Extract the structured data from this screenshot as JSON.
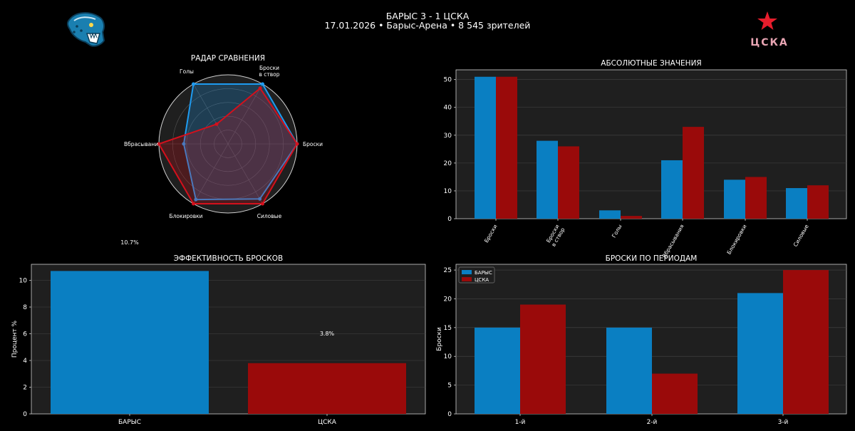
{
  "header": {
    "title": "БАРЫС 3 - 1 ЦСКА",
    "subtitle": "17.01.2026 • Барыс-Арена • 8 545 зрителей",
    "home_logo": "barys-jaguar-logo",
    "away_logo_text": "ЦСКА"
  },
  "colors": {
    "home": "#0a7fc2",
    "away": "#9a0a0a",
    "home_line": "#1e9bf0",
    "away_line": "#d4101c",
    "panel": "#1f1f1f"
  },
  "chart_data": [
    {
      "id": "radar",
      "type": "radar",
      "title": "РАДАР СРАВНЕНИЯ",
      "axes": [
        "Броски",
        "Броски\nв створ",
        "Голы",
        "Вбрасывания",
        "Блокировки",
        "Силовые"
      ],
      "axis_labels": [
        "Броски",
        "Броски",
        "в створ",
        "Голы",
        "Вбрасывани",
        "Блокировки",
        "Силовые"
      ],
      "series": [
        {
          "name": "БАРЫС",
          "values": [
            1.0,
            1.0,
            1.0,
            0.64,
            0.93,
            0.92
          ]
        },
        {
          "name": "ЦСКА",
          "values": [
            1.0,
            0.93,
            0.33,
            1.0,
            1.0,
            1.0
          ]
        }
      ]
    },
    {
      "id": "abs",
      "type": "bar",
      "title": "АБСОЛЮТНЫЕ ЗНАЧЕНИЯ",
      "categories": [
        "Броски",
        "Броски\nв створ",
        "Голы",
        "Вбрасывания",
        "Блокировки",
        "Силовые"
      ],
      "series": [
        {
          "name": "БАРЫС",
          "values": [
            51,
            28,
            3,
            21,
            14,
            11
          ]
        },
        {
          "name": "ЦСКА",
          "values": [
            51,
            26,
            1,
            33,
            15,
            12
          ]
        }
      ],
      "ylim": [
        0,
        53.5
      ],
      "yticks": [
        0,
        10,
        20,
        30,
        40,
        50
      ]
    },
    {
      "id": "eff",
      "type": "bar",
      "title": "ЭФФЕКТИВНОСТЬ БРОСКОВ",
      "categories": [
        "БАРЫС",
        "ЦСКА"
      ],
      "values": [
        10.7,
        3.8
      ],
      "data_labels": [
        "10.7%",
        "3.8%"
      ],
      "ylabel": "Процент %",
      "ylim": [
        0,
        11.2
      ],
      "yticks": [
        0,
        2,
        4,
        6,
        8,
        10
      ]
    },
    {
      "id": "periods",
      "type": "bar",
      "title": "БРОСКИ ПО ПЕРИОДАМ",
      "categories": [
        "1-й",
        "2-й",
        "3-й"
      ],
      "series": [
        {
          "name": "БАРЫС",
          "values": [
            15,
            15,
            21
          ]
        },
        {
          "name": "ЦСКА",
          "values": [
            19,
            7,
            25
          ]
        }
      ],
      "ylabel": "Броски",
      "ylim": [
        0,
        26
      ],
      "yticks": [
        0,
        5,
        10,
        15,
        20,
        25
      ],
      "legend": "top-left"
    }
  ]
}
